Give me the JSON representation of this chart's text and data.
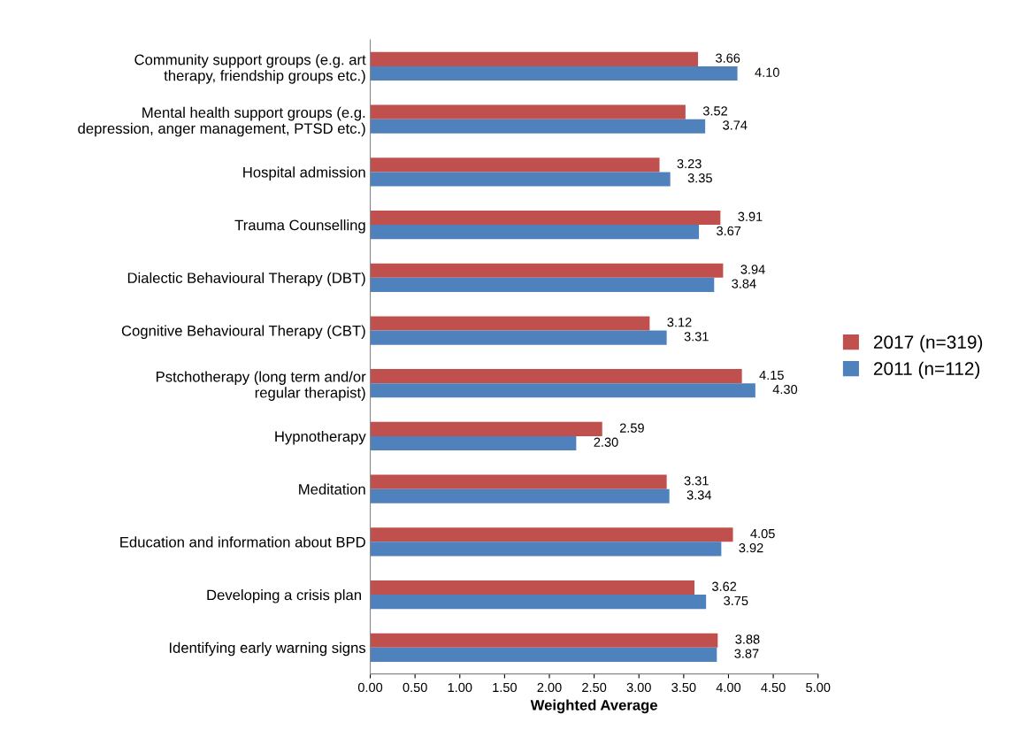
{
  "chart_data": {
    "type": "bar",
    "orientation": "horizontal",
    "xlabel": "Weighted Average",
    "categories": [
      "Community support groups (e.g. art\ntherapy, friendship groups etc.)",
      "Mental health support groups (e.g.\ndepression, anger management, PTSD etc.)",
      "Hospital admission",
      "Trauma Counselling",
      "Dialectic Behavioural Therapy (DBT)",
      "Cognitive Behavioural Therapy (CBT)",
      "Pstchotherapy (long term and/or\nregular therapist)",
      "Hypnotherapy",
      "Meditation",
      "Education and information about BPD",
      "Developing a crisis plan ",
      "Identifying early warning signs"
    ],
    "series": [
      {
        "name": "2017 (n=319)",
        "color": "#c0504d",
        "values": [
          3.66,
          3.52,
          3.23,
          3.91,
          3.94,
          3.12,
          4.15,
          2.59,
          3.31,
          4.05,
          3.62,
          3.88
        ],
        "value_labels": [
          "3.66",
          "3.52",
          "3.23",
          "3.91",
          "3.94",
          "3.12",
          "4.15",
          "2.59",
          "3.31",
          "4.05",
          "3.62",
          "3.88"
        ]
      },
      {
        "name": "2011 (n=112)",
        "color": "#4f81bd",
        "values": [
          4.1,
          3.74,
          3.35,
          3.67,
          3.84,
          3.31,
          4.3,
          2.3,
          3.34,
          3.92,
          3.75,
          3.87
        ],
        "value_labels": [
          "4.10",
          "3.74",
          "3.35",
          "3.67",
          "3.84",
          "3.31",
          "4.30",
          "2.30",
          "3.34",
          "3.92",
          "3.75",
          "3.87"
        ]
      }
    ],
    "xlim": [
      0,
      5
    ],
    "xticks": [
      {
        "value": 0,
        "label": "0.00"
      },
      {
        "value": 0.5,
        "label": "0.50"
      },
      {
        "value": 1,
        "label": "1.00"
      },
      {
        "value": 1.5,
        "label": "1.50"
      },
      {
        "value": 2,
        "label": "2.00"
      },
      {
        "value": 2.5,
        "label": "2.50"
      },
      {
        "value": 3,
        "label": "3.00"
      },
      {
        "value": 3.5,
        "label": "3.50"
      },
      {
        "value": 4,
        "label": "4.00"
      },
      {
        "value": 4.5,
        "label": "4.50"
      },
      {
        "value": 5,
        "label": "5.00"
      }
    ],
    "grid": false,
    "legend": "right"
  }
}
